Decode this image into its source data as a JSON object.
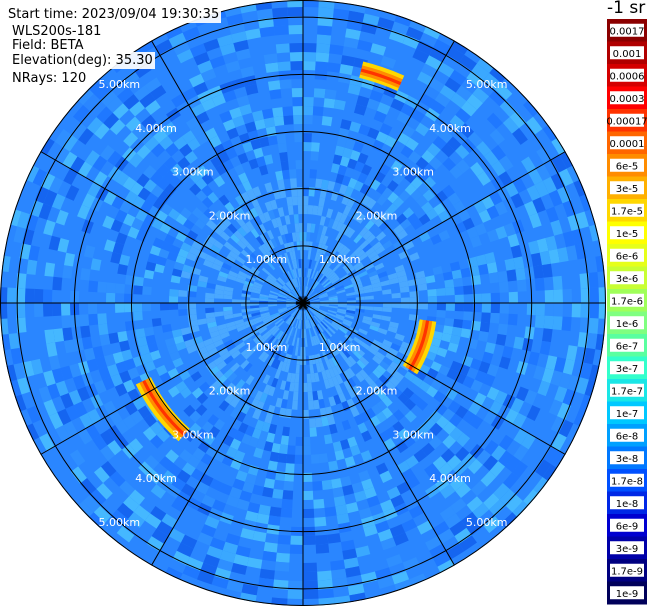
{
  "header": {
    "start_time": "Start time: 2023/09/04 19:30:35",
    "instrument": "WLS200s-181",
    "field": "Field: BETA",
    "elevation": "Elevation(deg): 35.30",
    "nrays": "NRays: 120"
  },
  "colorbar": {
    "unit_label": "-1 sr",
    "ticks": [
      "0.0017",
      "0.001",
      "0.0006",
      "0.0003",
      "0.00017",
      "0.0001",
      "6e-5",
      "3e-5",
      "1.7e-5",
      "1e-5",
      "6e-6",
      "3e-6",
      "1.7e-6",
      "1e-6",
      "6e-7",
      "3e-7",
      "1.7e-7",
      "1e-7",
      "6e-8",
      "3e-8",
      "1.7e-8",
      "1e-8",
      "6e-9",
      "3e-9",
      "1.7e-9",
      "1e-9"
    ],
    "colors": [
      "#8b0000",
      "#b00000",
      "#d40000",
      "#ff0000",
      "#ff3300",
      "#ff6600",
      "#ff8c00",
      "#ffb000",
      "#ffd700",
      "#ffff00",
      "#e6ff1a",
      "#c8ff33",
      "#a0ff5a",
      "#80ff80",
      "#5affa0",
      "#33ffcc",
      "#1ae6e6",
      "#00c8ff",
      "#00a0ff",
      "#0078ff",
      "#0050ff",
      "#0028e6",
      "#0000d0",
      "#0000a8",
      "#000080",
      "#00005a"
    ]
  },
  "chart_data": {
    "type": "heatmap",
    "projection": "polar PPI",
    "rays": 120,
    "max_range_km": 5.3,
    "range_rings_km": [
      1,
      2,
      3,
      4,
      5
    ],
    "range_labels": [
      "1.00km",
      "2.00km",
      "3.00km",
      "4.00km",
      "5.00km"
    ],
    "azimuth_spokes_deg": [
      0,
      30,
      60,
      90,
      120,
      150,
      180,
      210,
      240,
      270,
      300,
      330
    ],
    "background_colors": [
      "#2f8fff",
      "#1f78ff",
      "#3aa8ff",
      "#1565f0",
      "#45b8ff"
    ],
    "inner_region_color": "#4aa8ff",
    "features": [
      {
        "label": "arc-north",
        "az_deg_start": 14,
        "az_deg_end": 24,
        "range_km": 4.2
      },
      {
        "label": "arc-east",
        "az_deg_start": 98,
        "az_deg_end": 122,
        "range_km": 2.2
      },
      {
        "label": "arc-southwest",
        "az_deg_start": 222,
        "az_deg_end": 244,
        "range_km": 3.1
      }
    ]
  }
}
